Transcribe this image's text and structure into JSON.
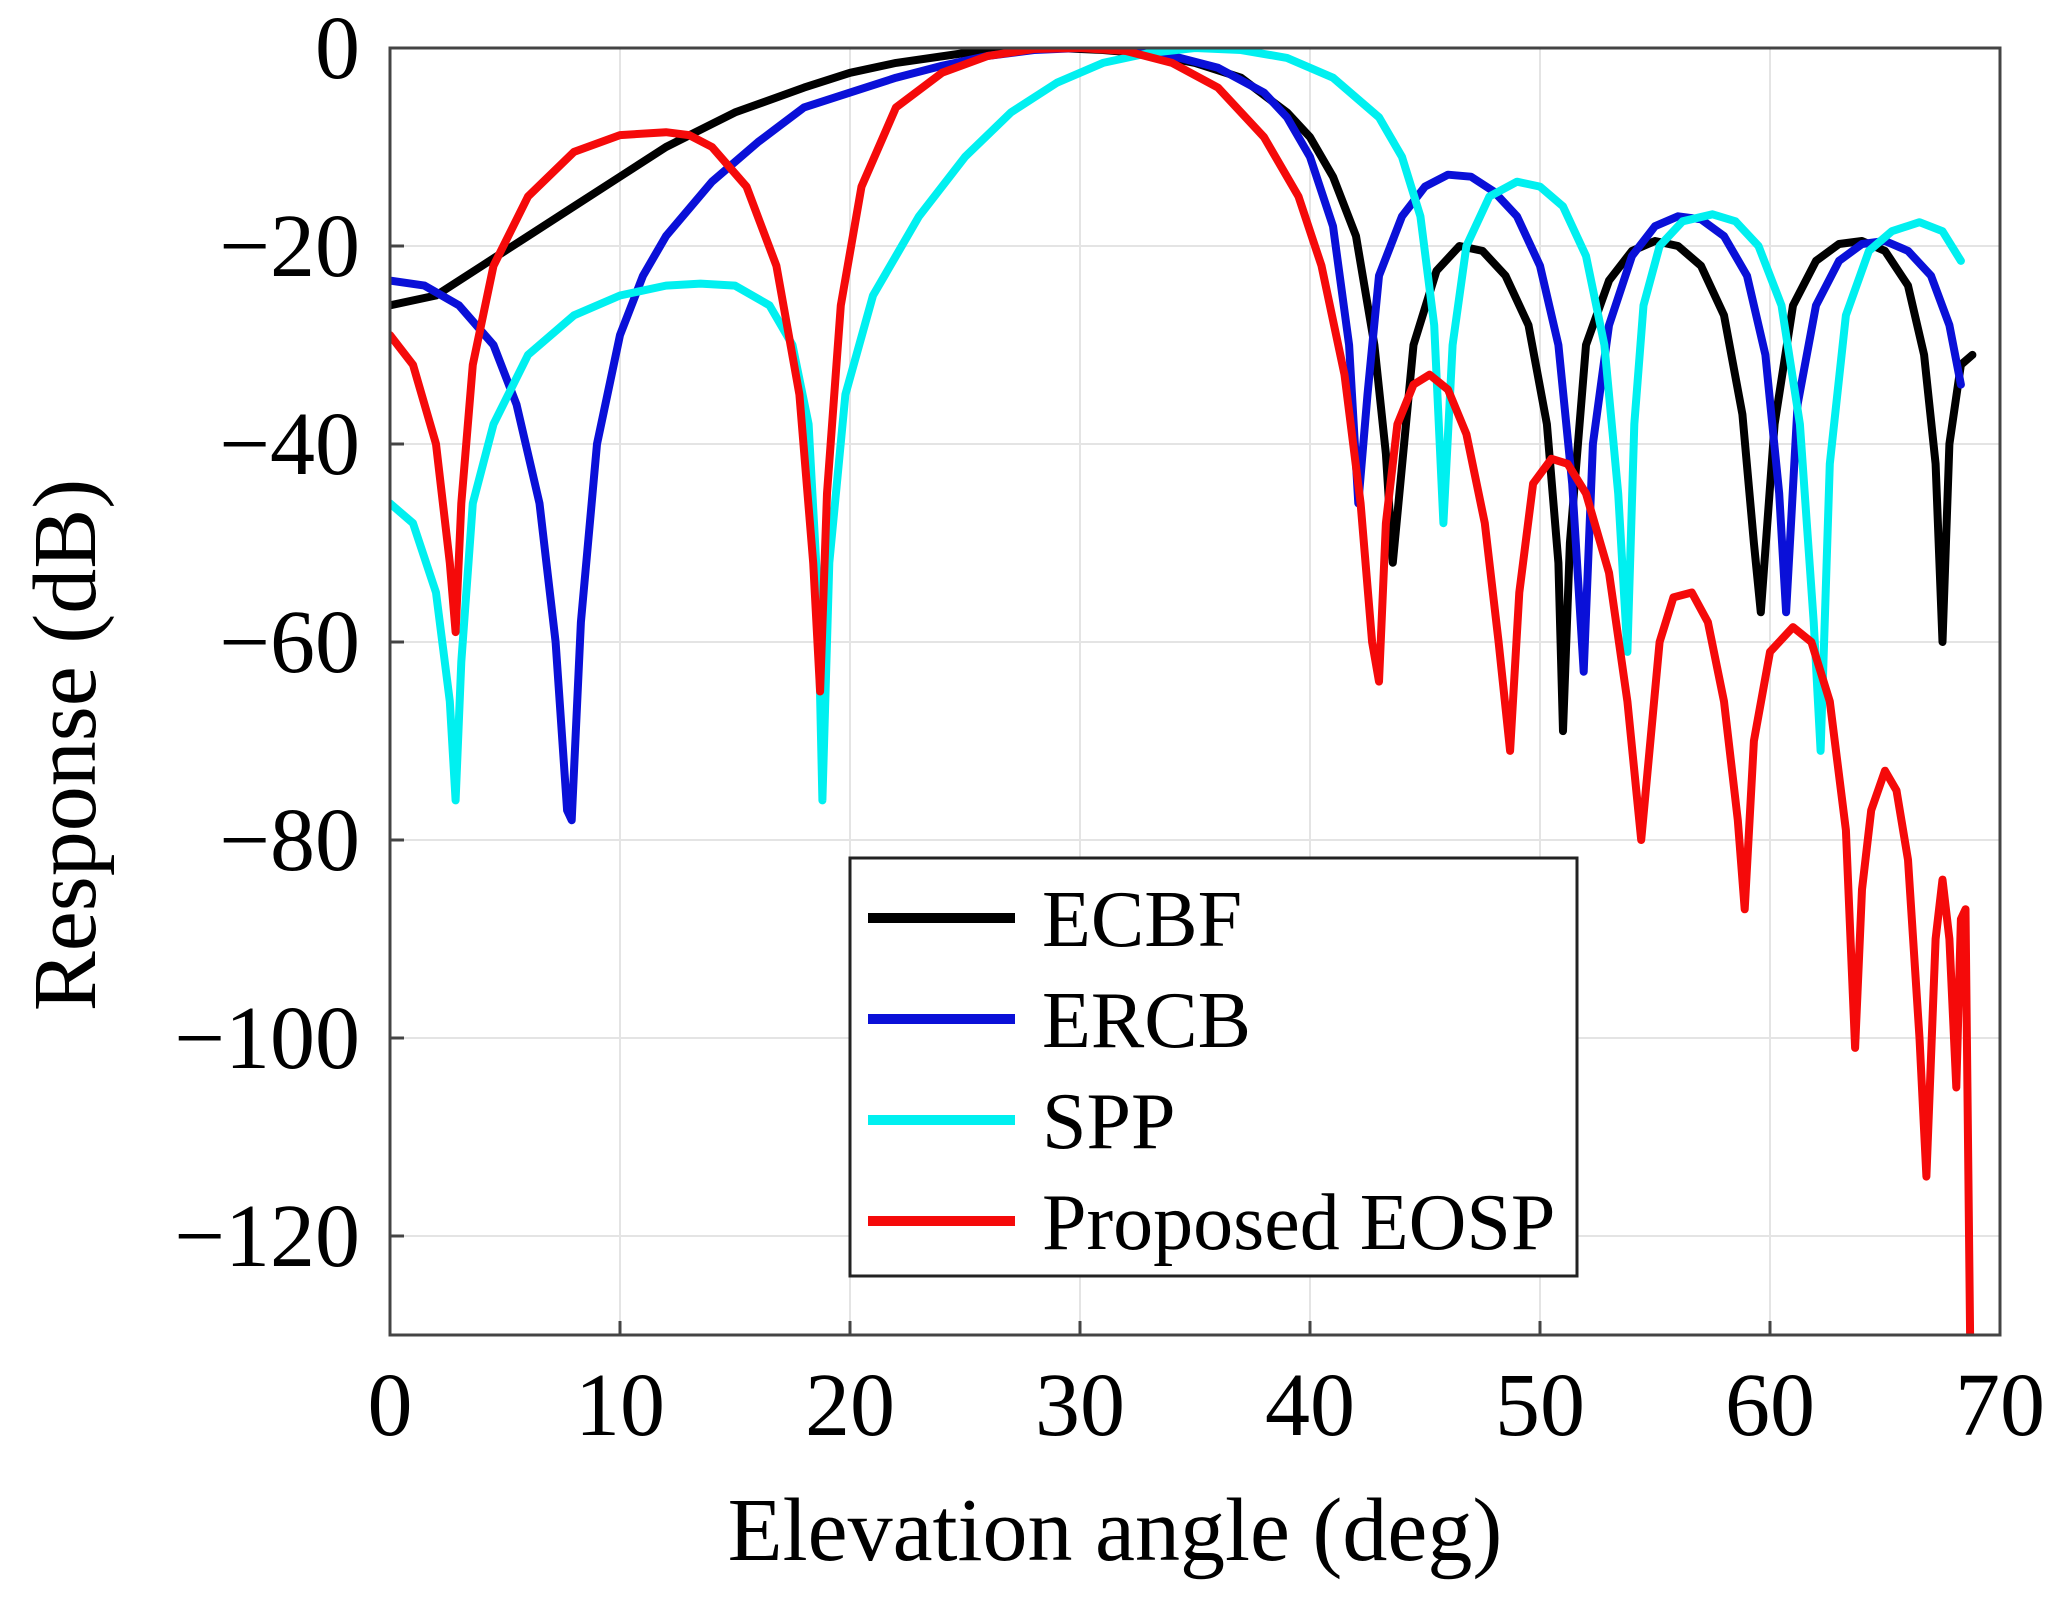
{
  "chart_data": {
    "type": "line",
    "title": "",
    "xlabel": "Elevation angle (deg)",
    "ylabel": "Response (dB)",
    "xlim": [
      0,
      70
    ],
    "ylim": [
      -130,
      0
    ],
    "xticks": [
      0,
      10,
      20,
      30,
      40,
      50,
      60,
      70
    ],
    "yticks": [
      0,
      -20,
      -40,
      -60,
      -80,
      -100,
      -120
    ],
    "xtick_labels": [
      "0",
      "10",
      "20",
      "30",
      "40",
      "50",
      "60",
      "70"
    ],
    "ytick_labels": [
      "0",
      "−20",
      "−40",
      "−60",
      "−80",
      "−100",
      "−120"
    ],
    "grid": true,
    "legend_position": "bottom-center",
    "series": [
      {
        "name": "ECBF",
        "color": "#000000",
        "x": [
          0,
          2,
          4,
          6,
          8,
          10,
          12,
          15,
          18,
          20,
          22,
          25,
          27,
          29,
          31,
          33,
          35,
          37,
          39,
          40,
          41,
          42,
          42.8,
          43.3,
          43.6,
          44.5,
          45.5,
          46.5,
          47.5,
          48.5,
          49.5,
          50.3,
          50.8,
          51,
          51.3,
          52,
          53,
          54,
          55,
          56,
          57,
          58,
          58.8,
          59.3,
          59.6,
          60.2,
          61,
          62,
          63,
          64,
          65,
          66,
          66.7,
          67.2,
          67.5,
          67.8,
          68.3,
          68.8
        ],
        "y": [
          -26,
          -25,
          -22,
          -19,
          -16,
          -13,
          -10,
          -6.5,
          -4,
          -2.5,
          -1.5,
          -0.5,
          -0.1,
          0,
          -0.2,
          -0.6,
          -1.5,
          -3,
          -6.5,
          -9,
          -13,
          -19,
          -30,
          -41,
          -52,
          -30,
          -22.5,
          -20,
          -20.5,
          -23,
          -28,
          -38,
          -52,
          -69,
          -50,
          -30,
          -23.5,
          -20.5,
          -19.5,
          -20,
          -22,
          -27,
          -37,
          -50,
          -57,
          -38,
          -26,
          -21.5,
          -19.8,
          -19.5,
          -20.5,
          -24,
          -31,
          -42,
          -60,
          -40,
          -32,
          -31
        ]
      },
      {
        "name": "ERCB",
        "color": "#0a10d8",
        "x": [
          0,
          1.5,
          3,
          4.5,
          5.5,
          6.5,
          7.2,
          7.7,
          7.9,
          8.3,
          9,
          10,
          11,
          12,
          14,
          16,
          18,
          20,
          22,
          24,
          26,
          28,
          30,
          32,
          34,
          36,
          38,
          39,
          40,
          41,
          41.7,
          42.1,
          42.5,
          43,
          44,
          45,
          46,
          47,
          48,
          49,
          50,
          50.8,
          51.4,
          51.9,
          52.3,
          53,
          54,
          55,
          56,
          57,
          58,
          59,
          59.8,
          60.4,
          60.7,
          61.2,
          62,
          63,
          64,
          65,
          66,
          67,
          67.8,
          68.3
        ],
        "y": [
          -23.5,
          -24,
          -26,
          -30,
          -36,
          -46,
          -60,
          -77,
          -78,
          -58,
          -40,
          -29,
          -23,
          -19,
          -13.5,
          -9.5,
          -6,
          -4.5,
          -3,
          -1.8,
          -0.8,
          -0.2,
          0,
          -0.2,
          -0.8,
          -2,
          -4.5,
          -7,
          -11,
          -18,
          -30,
          -46,
          -35,
          -23,
          -17,
          -14,
          -12.8,
          -13,
          -14.5,
          -17,
          -22,
          -30,
          -44,
          -63,
          -40,
          -28,
          -21,
          -18,
          -17,
          -17.3,
          -19,
          -23,
          -31,
          -45,
          -57,
          -36,
          -26,
          -21.5,
          -19.8,
          -19.5,
          -20.5,
          -23,
          -28,
          -34
        ]
      },
      {
        "name": "SPP",
        "color": "#00f0f0",
        "x": [
          0,
          1,
          2,
          2.6,
          2.85,
          3.1,
          3.6,
          4.5,
          6,
          8,
          10,
          12,
          13.5,
          15,
          16.5,
          17.5,
          18.2,
          18.6,
          18.8,
          19.1,
          19.8,
          21,
          23,
          25,
          27,
          29,
          31,
          33,
          35,
          37,
          39,
          41,
          43,
          44,
          44.8,
          45.4,
          45.8,
          46.2,
          46.8,
          47.8,
          49,
          50,
          51,
          52,
          52.8,
          53.4,
          53.8,
          54.1,
          54.5,
          55.2,
          56.2,
          57.5,
          58.5,
          59.5,
          60.5,
          61.3,
          61.9,
          62.2,
          62.6,
          63.3,
          64.3,
          65.3,
          66.5,
          67.5,
          68.3
        ],
        "y": [
          -46,
          -48,
          -55,
          -66,
          -76,
          -62,
          -46,
          -38,
          -31,
          -27,
          -25,
          -24,
          -23.8,
          -24,
          -26,
          -30,
          -38,
          -55,
          -76,
          -52,
          -35,
          -25,
          -17,
          -11,
          -6.5,
          -3.5,
          -1.5,
          -0.5,
          0,
          -0.2,
          -1,
          -3,
          -7,
          -11,
          -17,
          -28,
          -48,
          -30,
          -20,
          -15,
          -13.5,
          -14,
          -16,
          -21,
          -30,
          -45,
          -61,
          -38,
          -26,
          -20,
          -17.5,
          -16.8,
          -17.5,
          -20,
          -26,
          -38,
          -58,
          -71,
          -42,
          -27,
          -20.5,
          -18.5,
          -17.6,
          -18.5,
          -21.5
        ]
      },
      {
        "name": "Proposed EOSP",
        "color": "#f50a0a",
        "x": [
          0,
          1,
          2,
          2.6,
          2.85,
          3.1,
          3.6,
          4.5,
          6,
          8,
          10,
          12,
          13,
          14,
          15.5,
          16.8,
          17.8,
          18.4,
          18.7,
          19,
          19.6,
          20.5,
          22,
          24,
          26,
          28,
          30,
          32,
          34,
          36,
          38,
          39.5,
          40.5,
          41.5,
          42.2,
          42.7,
          43,
          43.3,
          43.8,
          44.5,
          45.2,
          46,
          46.8,
          47.6,
          48.2,
          48.7,
          49.1,
          49.7,
          50.5,
          51.2,
          52,
          53,
          53.8,
          54.4,
          54.8,
          55.2,
          55.8,
          56.6,
          57.3,
          58,
          58.6,
          58.9,
          59.3,
          60,
          61,
          61.8,
          62.6,
          63.3,
          63.7,
          64,
          64.4,
          65,
          65.5,
          66,
          66.5,
          66.8,
          67.2,
          67.5,
          67.8,
          68.1,
          68.3,
          68.5,
          68.7
        ],
        "y": [
          -29,
          -32,
          -40,
          -52,
          -59,
          -46,
          -32,
          -22,
          -15,
          -10.5,
          -8.8,
          -8.5,
          -8.8,
          -10,
          -14,
          -22,
          -35,
          -52,
          -65,
          -45,
          -26,
          -14,
          -6,
          -2.5,
          -0.8,
          -0.1,
          0,
          -0.3,
          -1.5,
          -4,
          -9,
          -15,
          -22,
          -33,
          -46,
          -60,
          -64,
          -48,
          -38,
          -34,
          -33,
          -34.5,
          -39,
          -48,
          -60,
          -71,
          -55,
          -44,
          -41.5,
          -42,
          -45,
          -53,
          -66,
          -80,
          -70,
          -60,
          -55.5,
          -55,
          -58,
          -66,
          -78,
          -87,
          -70,
          -61,
          -58.5,
          -60,
          -66,
          -79,
          -101,
          -85,
          -77,
          -73,
          -75,
          -82,
          -100,
          -114,
          -90,
          -84,
          -90,
          -105,
          -88,
          -87,
          -130
        ]
      }
    ]
  }
}
